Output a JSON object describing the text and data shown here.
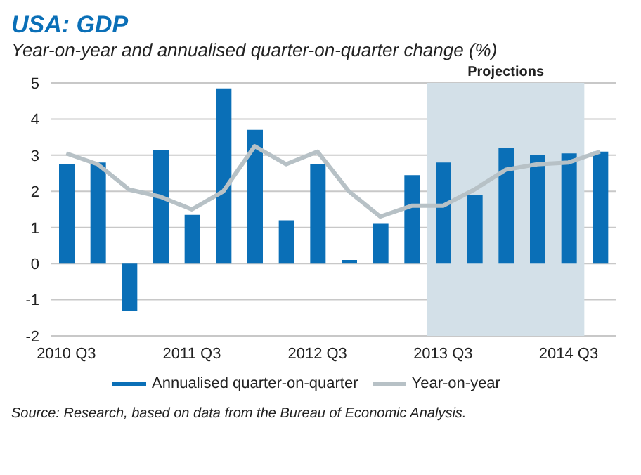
{
  "chart_data": {
    "type": "bar",
    "title": "USA: GDP",
    "subtitle": "Year-on-year and annualised quarter-on-quarter change (%)",
    "categories": [
      "2010 Q3",
      null,
      null,
      null,
      "2011 Q3",
      null,
      null,
      null,
      "2012 Q3",
      null,
      null,
      null,
      "2013 Q3",
      null,
      null,
      null,
      "2014 Q3",
      null
    ],
    "series": [
      {
        "name": "Annualised quarter-on-quarter",
        "color": "#0a6fb7",
        "values": [
          2.75,
          2.8,
          -1.3,
          3.15,
          1.35,
          4.85,
          3.7,
          1.2,
          2.75,
          0.1,
          1.1,
          2.45,
          2.8,
          1.9,
          3.2,
          3.0,
          3.05,
          3.1
        ]
      },
      {
        "name": "Year-on-year",
        "type": "line",
        "color": "#b7c1c6",
        "values": [
          3.05,
          2.75,
          2.05,
          1.85,
          1.5,
          2.0,
          3.25,
          2.75,
          3.1,
          2.0,
          1.3,
          1.6,
          1.6,
          2.05,
          2.6,
          2.75,
          2.8,
          3.1
        ]
      }
    ],
    "ylim": [
      -2,
      5
    ],
    "yticks": [
      -2,
      -1,
      0,
      1,
      2,
      3,
      4,
      5
    ],
    "grid": "y",
    "legend": "bottom",
    "bands": [
      {
        "axis": "x",
        "from": "2013 Q3",
        "to": "2014 Q3",
        "label": "Projections",
        "color": "#d3e0e8"
      }
    ],
    "annotations": [
      "Source: Research, based on data from the Bureau of Economic Analysis."
    ]
  }
}
